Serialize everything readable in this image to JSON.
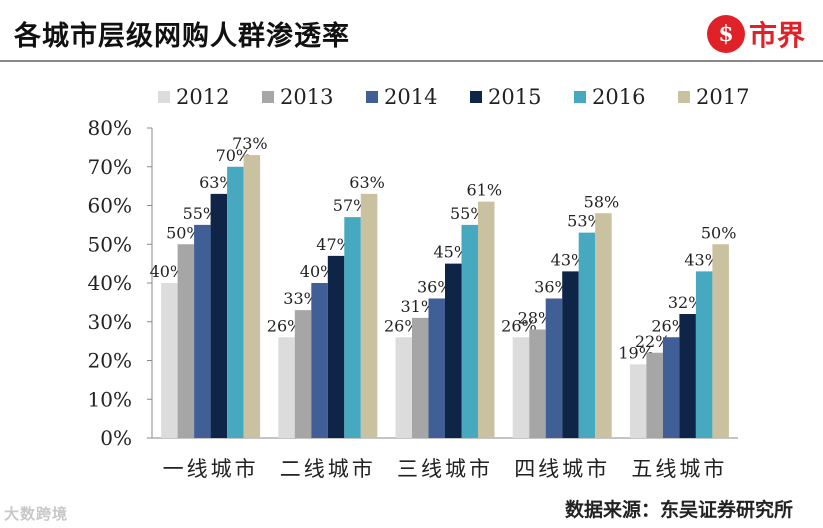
{
  "header": {
    "title": "各城市层级网购人群渗透率",
    "brand_logo_glyph": "$",
    "brand_name": "市界"
  },
  "footer": {
    "source": "数据来源：东吴证券研究所",
    "watermark": "大数跨境"
  },
  "colors": {
    "brand": "#e02127"
  },
  "chart_data": {
    "type": "bar",
    "title": "各城市层级网购人群渗透率",
    "categories": [
      "一线城市",
      "二线城市",
      "三线城市",
      "四线城市",
      "五线城市"
    ],
    "series": [
      {
        "name": "2012",
        "color": "#dcdcdc",
        "values": [
          40,
          26,
          26,
          26,
          19
        ]
      },
      {
        "name": "2013",
        "color": "#a6a6a6",
        "values": [
          50,
          33,
          31,
          28,
          22
        ]
      },
      {
        "name": "2014",
        "color": "#3f5f96",
        "values": [
          55,
          40,
          36,
          36,
          26
        ]
      },
      {
        "name": "2015",
        "color": "#0f2547",
        "values": [
          63,
          47,
          45,
          43,
          32
        ]
      },
      {
        "name": "2016",
        "color": "#46a9c0",
        "values": [
          70,
          57,
          55,
          53,
          43
        ]
      },
      {
        "name": "2017",
        "color": "#c9c1a0",
        "values": [
          73,
          63,
          61,
          58,
          50
        ]
      }
    ],
    "ylim": [
      0,
      80
    ],
    "yticks": [
      0,
      10,
      20,
      30,
      40,
      50,
      60,
      70,
      80
    ],
    "ytick_suffix": "%",
    "value_suffix": "%",
    "xlabel": "",
    "ylabel": "",
    "legend_position": "top",
    "grid": false
  }
}
